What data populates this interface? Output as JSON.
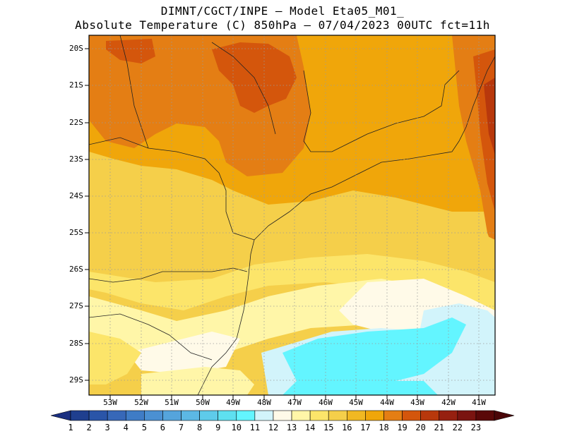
{
  "header": {
    "line1": "DIMNT/CGCT/INPE –  Model Eta05_M01_",
    "line2": "Absolute Temperature (C) 850hPa –  07/04/2023 00UTC fct=11h"
  },
  "map": {
    "lat_labels": [
      "20S",
      "21S",
      "22S",
      "23S",
      "24S",
      "25S",
      "26S",
      "27S",
      "28S",
      "29S"
    ],
    "lon_labels": [
      "53W",
      "52W",
      "51W",
      "50W",
      "49W",
      "48W",
      "47W",
      "46W",
      "45W",
      "44W",
      "43W",
      "42W",
      "41W"
    ]
  },
  "colorbar": {
    "labels": [
      "1",
      "2",
      "3",
      "4",
      "5",
      "6",
      "7",
      "8",
      "9",
      "10",
      "11",
      "12",
      "13",
      "14",
      "15",
      "16",
      "17",
      "18",
      "19",
      "20",
      "21",
      "22",
      "23"
    ],
    "colors": [
      "#1f3f8f",
      "#2a55a8",
      "#3768b8",
      "#3f7cc6",
      "#4b90d2",
      "#55a4dc",
      "#5cb8e4",
      "#5ecbea",
      "#5ee0f0",
      "#63f5ff",
      "#d2f4fb",
      "#fffae8",
      "#fff6a8",
      "#fce56a",
      "#f5cf4a",
      "#f1b822",
      "#f0a60a",
      "#e47e14",
      "#d4560c",
      "#b8380c",
      "#962010",
      "#7a1410",
      "#5a0808"
    ],
    "under_color": "#1a2f80",
    "over_color": "#4a0608"
  }
}
